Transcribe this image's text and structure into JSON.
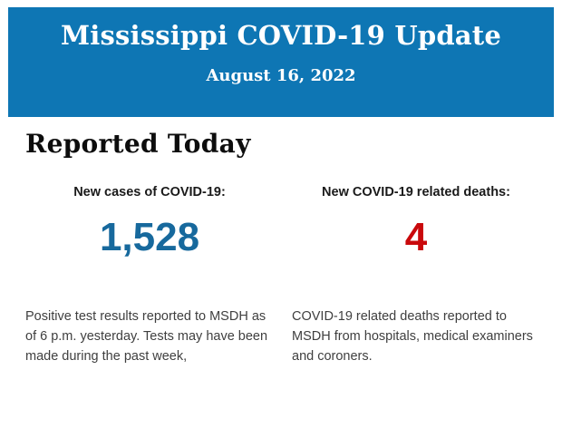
{
  "header": {
    "title": "Mississippi COVID-19 Update",
    "date": "August 16, 2022",
    "background_color": "#0e76b4",
    "text_color": "#ffffff"
  },
  "section": {
    "heading": "Reported Today"
  },
  "stats": {
    "cases": {
      "label": "New cases of COVID-19:",
      "value": "1,528",
      "value_color": "#17699d",
      "description": "Positive test results reported to MSDH as\nof 6 p.m. yesterday. Tests may have been\nmade during the past week,"
    },
    "deaths": {
      "label": "New COVID-19 related deaths:",
      "value": "4",
      "value_color": "#c9090c",
      "description": "COVID-19 related deaths reported to\nMSDH from hospitals, medical examiners\nand coroners."
    }
  }
}
